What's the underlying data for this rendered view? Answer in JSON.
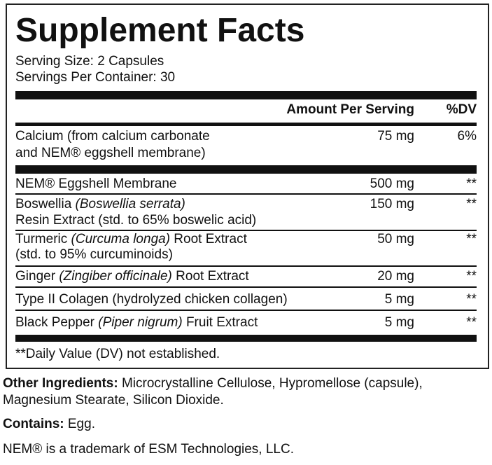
{
  "header": {
    "title": "Supplement Facts",
    "serving_size": "Serving Size: 2 Capsules",
    "servings_per_container": "Servings Per Container: 30"
  },
  "table": {
    "columns": [
      "Amount Per Serving",
      "%DV"
    ],
    "rows": [
      {
        "lines": [
          [
            {
              "text": "Calcium (from calcium carbonate"
            }
          ],
          [
            {
              "text": "and NEM® eggshell membrane)"
            }
          ]
        ],
        "amount": "75 mg",
        "dv": "6%"
      },
      {
        "lines": [
          [
            {
              "text": "NEM® Eggshell Membrane"
            }
          ]
        ],
        "amount": "500 mg",
        "dv": "**"
      },
      {
        "lines": [
          [
            {
              "text": "Boswellia "
            },
            {
              "text": "(Boswellia serrata)",
              "style": "italic"
            }
          ],
          [
            {
              "text": "Resin Extract (std. to 65% boswelic acid)"
            }
          ]
        ],
        "amount": "150 mg",
        "dv": "**"
      },
      {
        "lines": [
          [
            {
              "text": "Turmeric "
            },
            {
              "text": "(Curcuma longa)",
              "style": "italic"
            },
            {
              "text": " Root Extract"
            }
          ],
          [
            {
              "text": "(std. to 95% curcuminoids)"
            }
          ]
        ],
        "amount": "50 mg",
        "dv": "**"
      },
      {
        "lines": [
          [
            {
              "text": "Ginger "
            },
            {
              "text": "(Zingiber officinale)",
              "style": "italic"
            },
            {
              "text": " Root Extract"
            }
          ]
        ],
        "amount": "20 mg",
        "dv": "**"
      },
      {
        "lines": [
          [
            {
              "text": "Type II Colagen (hydrolyzed chicken collagen)"
            }
          ]
        ],
        "amount": "5 mg",
        "dv": "**"
      },
      {
        "lines": [
          [
            {
              "text": "Black Pepper "
            },
            {
              "text": "(Piper nigrum)",
              "style": "italic"
            },
            {
              "text": " Fruit Extract"
            }
          ]
        ],
        "amount": "5 mg",
        "dv": "**"
      }
    ],
    "footnote": "**Daily Value (DV) not established."
  },
  "other_ingredients": {
    "label": "Other Ingredients:",
    "text": " Microcrystalline Cellulose, Hypromellose (capsule), Magnesium Stearate, Silicon Dioxide."
  },
  "contains": {
    "label": "Contains:",
    "text": " Egg."
  },
  "trademark": "NEM® is a trademark of ESM Technologies, LLC."
}
